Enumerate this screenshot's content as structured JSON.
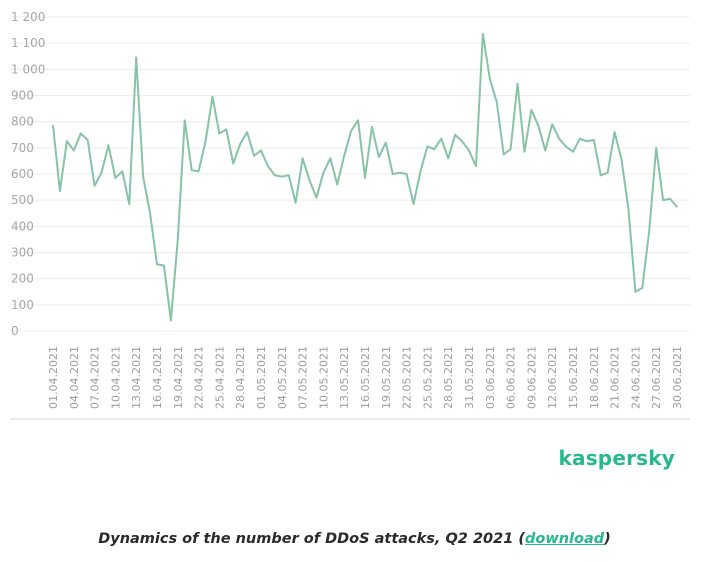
{
  "chart_data": {
    "type": "line",
    "title": "",
    "xlabel": "",
    "ylabel": "",
    "ylim": [
      0,
      1200
    ],
    "y_ticks": [
      "0",
      "100",
      "200",
      "300",
      "400",
      "500",
      "600",
      "700",
      "800",
      "900",
      "1 000",
      "1 100",
      "1 200"
    ],
    "x_tick_labels": [
      "01.04.2021",
      "04.04.2021",
      "07.04.2021",
      "10.04.2021",
      "13.04.2021",
      "16.04.2021",
      "19.04.2021",
      "22.04.2021",
      "25.04.2021",
      "28.04.2021",
      "01.05.2021",
      "04.05.2021",
      "07.05.2021",
      "10.05.2021",
      "13.05.2021",
      "16.05.2021",
      "19.05.2021",
      "22.05.2021",
      "25.05.2021",
      "28.05.2021",
      "31.05.2021",
      "03.06.2021",
      "06.06.2021",
      "09.06.2021",
      "12.06.2021",
      "15.06.2021",
      "18.06.2021",
      "21.06.2021",
      "24.06.2021",
      "27.06.2021",
      "30.06.2021"
    ],
    "x_start": "01.04.2021",
    "x_end": "30.06.2021",
    "grid": true,
    "line_color": "#86c4a5",
    "series": [
      {
        "values": [
          785,
          535,
          725,
          690,
          755,
          730,
          555,
          605,
          710,
          585,
          610,
          485,
          1045,
          590,
          450,
          255,
          250,
          40,
          350,
          805,
          615,
          610,
          725,
          895,
          755,
          770,
          640,
          715,
          760,
          670,
          690,
          630,
          595,
          590,
          595,
          490,
          660,
          575,
          510,
          605,
          660,
          560,
          670,
          765,
          805,
          585,
          780,
          665,
          720,
          600,
          605,
          600,
          485,
          610,
          705,
          695,
          735,
          660,
          750,
          725,
          690,
          630,
          1135,
          965,
          875,
          675,
          695,
          945,
          685,
          845,
          785,
          690,
          790,
          735,
          705,
          685,
          735,
          725,
          730,
          595,
          605,
          760,
          655,
          465,
          150,
          165,
          385,
          700,
          500,
          505,
          475
        ]
      }
    ]
  },
  "brand": {
    "logo": "kaspersky",
    "color": "#27b88f"
  },
  "caption": {
    "before": "Dynamics of the number of DDoS attacks, Q2 2021 (",
    "link": "download",
    "after": ")"
  }
}
